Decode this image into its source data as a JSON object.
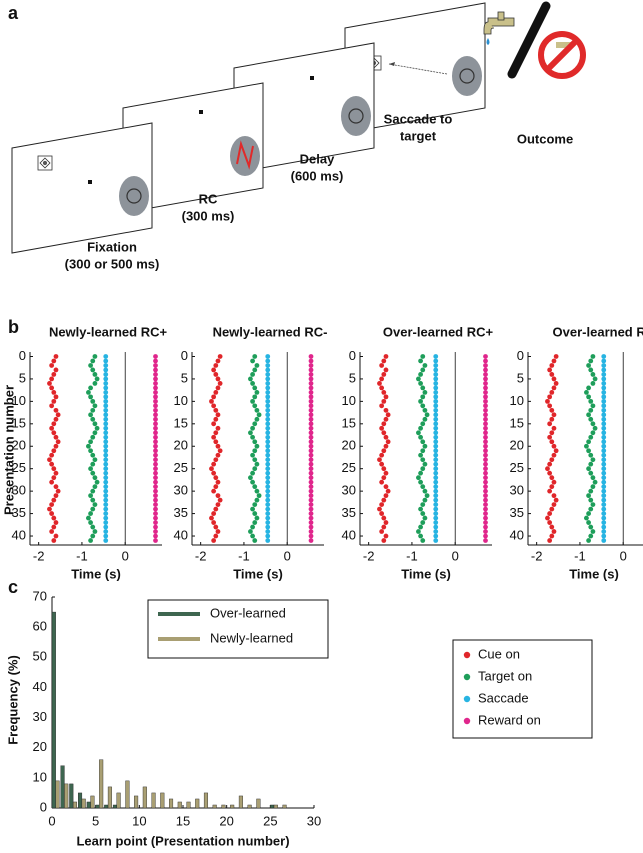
{
  "panel_a": {
    "label": "a",
    "steps": [
      {
        "lines": [
          "Fixation",
          "(300 or 500 ms)"
        ]
      },
      {
        "lines": [
          "RC",
          "(300 ms)"
        ]
      },
      {
        "lines": [
          "Delay",
          "(600 ms)"
        ]
      },
      {
        "lines": [
          "Saccade to",
          "target"
        ]
      },
      {
        "lines": [
          "Outcome"
        ]
      }
    ]
  },
  "panel_b": {
    "label": "b",
    "type": "raster",
    "ylabel": "Presentation number",
    "xlabel": "Time (s)",
    "xlim": [
      -2.2,
      0.85
    ],
    "xticks": [
      -2,
      -1,
      0
    ],
    "ylim": [
      -1,
      42
    ],
    "yticks": [
      0,
      5,
      10,
      15,
      20,
      25,
      30,
      35,
      40
    ],
    "legend": [
      {
        "name": "Cue on",
        "color": "#e0262a"
      },
      {
        "name": "Target on",
        "color": "#1e9e5a"
      },
      {
        "name": "Saccade",
        "color": "#27b4e2"
      },
      {
        "name": "Reward on",
        "color": "#e0268c"
      }
    ],
    "plots": [
      {
        "title": "Newly-learned RC+",
        "series": [
          {
            "values": [
              -1.6,
              -1.65,
              -1.7,
              -1.6,
              -1.65,
              -1.7,
              -1.75,
              -1.7,
              -1.65,
              -1.6,
              -1.65,
              -1.7,
              -1.6,
              -1.55,
              -1.6,
              -1.65,
              -1.7,
              -1.65,
              -1.6,
              -1.55,
              -1.6,
              -1.65,
              -1.7,
              -1.75,
              -1.7,
              -1.65,
              -1.6,
              -1.65,
              -1.7,
              -1.6,
              -1.55,
              -1.6,
              -1.65,
              -1.7,
              -1.75,
              -1.7,
              -1.65,
              -1.6,
              -1.65,
              -1.7,
              -1.6,
              -1.65
            ]
          },
          {
            "values": [
              -0.7,
              -0.75,
              -0.8,
              -0.75,
              -0.7,
              -0.65,
              -0.7,
              -0.8,
              -0.85,
              -0.8,
              -0.75,
              -0.7,
              -0.75,
              -0.8,
              -0.75,
              -0.7,
              -0.65,
              -0.7,
              -0.75,
              -0.8,
              -0.85,
              -0.8,
              -0.75,
              -0.7,
              -0.75,
              -0.8,
              -0.75,
              -0.7,
              -0.65,
              -0.7,
              -0.75,
              -0.8,
              -0.75,
              -0.7,
              -0.75,
              -0.8,
              -0.85,
              -0.8,
              -0.75,
              -0.7,
              -0.75,
              -0.8
            ]
          },
          {
            "values": [
              -0.45,
              -0.45,
              -0.45,
              -0.45,
              -0.45,
              -0.45,
              -0.45,
              -0.45,
              -0.45,
              -0.45,
              -0.45,
              -0.45,
              -0.45,
              -0.45,
              -0.45,
              -0.45,
              -0.45,
              -0.45,
              -0.45,
              -0.45,
              -0.45,
              -0.45,
              -0.45,
              -0.45,
              -0.45,
              -0.45,
              -0.45,
              -0.45,
              -0.45,
              -0.45,
              -0.45,
              -0.45,
              -0.45,
              -0.45,
              -0.45,
              -0.45,
              -0.45,
              -0.45,
              -0.45,
              -0.45,
              -0.45,
              -0.45
            ]
          },
          {
            "values": [
              0.7,
              0.7,
              0.7,
              0.7,
              0.7,
              0.7,
              0.7,
              0.7,
              0.7,
              0.7,
              0.7,
              0.7,
              0.7,
              0.7,
              0.7,
              0.7,
              0.7,
              0.7,
              0.7,
              0.7,
              0.7,
              0.7,
              0.7,
              0.7,
              0.7,
              0.7,
              0.7,
              0.7,
              0.7,
              0.7,
              0.7,
              0.7,
              0.7,
              0.7,
              0.7,
              0.7,
              0.7,
              0.7,
              0.7,
              0.7,
              0.7,
              0.7
            ]
          }
        ]
      },
      {
        "title": "Newly-learned RC-",
        "series": [
          {
            "values": [
              -1.55,
              -1.6,
              -1.65,
              -1.7,
              -1.65,
              -1.6,
              -1.55,
              -1.6,
              -1.65,
              -1.7,
              -1.75,
              -1.7,
              -1.65,
              -1.6,
              -1.65,
              -1.7,
              -1.6,
              -1.65,
              -1.7,
              -1.65,
              -1.6,
              -1.55,
              -1.6,
              -1.65,
              -1.7,
              -1.75,
              -1.7,
              -1.65,
              -1.6,
              -1.65,
              -1.7,
              -1.6,
              -1.55,
              -1.6,
              -1.65,
              -1.7,
              -1.75,
              -1.7,
              -1.65,
              -1.6,
              -1.65,
              -1.7
            ]
          },
          {
            "values": [
              -0.75,
              -0.8,
              -0.7,
              -0.75,
              -0.8,
              -0.85,
              -0.8,
              -0.75,
              -0.7,
              -0.75,
              -0.8,
              -0.75,
              -0.7,
              -0.65,
              -0.7,
              -0.75,
              -0.8,
              -0.85,
              -0.8,
              -0.75,
              -0.7,
              -0.75,
              -0.8,
              -0.75,
              -0.7,
              -0.75,
              -0.8,
              -0.85,
              -0.8,
              -0.75,
              -0.7,
              -0.65,
              -0.7,
              -0.75,
              -0.8,
              -0.75,
              -0.7,
              -0.75,
              -0.8,
              -0.85,
              -0.8,
              -0.75
            ]
          },
          {
            "values": [
              -0.45,
              -0.45,
              -0.45,
              -0.45,
              -0.45,
              -0.45,
              -0.45,
              -0.45,
              -0.45,
              -0.45,
              -0.45,
              -0.45,
              -0.45,
              -0.45,
              -0.45,
              -0.45,
              -0.45,
              -0.45,
              -0.45,
              -0.45,
              -0.45,
              -0.45,
              -0.45,
              -0.45,
              -0.45,
              -0.45,
              -0.45,
              -0.45,
              -0.45,
              -0.45,
              -0.45,
              -0.45,
              -0.45,
              -0.45,
              -0.45,
              -0.45,
              -0.45,
              -0.45,
              -0.45,
              -0.45,
              -0.45,
              -0.45
            ]
          },
          {
            "values": [
              0.55,
              0.55,
              0.55,
              0.55,
              0.55,
              0.55,
              0.55,
              0.55,
              0.55,
              0.55,
              0.55,
              0.55,
              0.55,
              0.55,
              0.55,
              0.55,
              0.55,
              0.55,
              0.55,
              0.55,
              0.55,
              0.55,
              0.55,
              0.55,
              0.55,
              0.55,
              0.55,
              0.55,
              0.55,
              0.55,
              0.55,
              0.55,
              0.55,
              0.55,
              0.55,
              0.55,
              0.55,
              0.55,
              0.55,
              0.55,
              0.55,
              0.55
            ]
          }
        ]
      },
      {
        "title": "Over-learned RC+",
        "series": [
          {
            "values": [
              -1.6,
              -1.65,
              -1.7,
              -1.6,
              -1.65,
              -1.7,
              -1.75,
              -1.7,
              -1.65,
              -1.6,
              -1.65,
              -1.7,
              -1.6,
              -1.55,
              -1.6,
              -1.65,
              -1.7,
              -1.65,
              -1.6,
              -1.55,
              -1.6,
              -1.65,
              -1.7,
              -1.75,
              -1.7,
              -1.65,
              -1.6,
              -1.65,
              -1.7,
              -1.6,
              -1.55,
              -1.6,
              -1.65,
              -1.7,
              -1.75,
              -1.7,
              -1.65,
              -1.6,
              -1.65,
              -1.7,
              -1.6,
              -1.65
            ]
          },
          {
            "values": [
              -0.75,
              -0.8,
              -0.7,
              -0.75,
              -0.8,
              -0.85,
              -0.8,
              -0.75,
              -0.7,
              -0.75,
              -0.8,
              -0.75,
              -0.7,
              -0.65,
              -0.7,
              -0.75,
              -0.8,
              -0.85,
              -0.8,
              -0.75,
              -0.7,
              -0.75,
              -0.8,
              -0.75,
              -0.7,
              -0.75,
              -0.8,
              -0.85,
              -0.8,
              -0.75,
              -0.7,
              -0.65,
              -0.7,
              -0.75,
              -0.8,
              -0.75,
              -0.7,
              -0.75,
              -0.8,
              -0.85,
              -0.8,
              -0.75
            ]
          },
          {
            "values": [
              -0.45,
              -0.45,
              -0.45,
              -0.45,
              -0.45,
              -0.45,
              -0.45,
              -0.45,
              -0.45,
              -0.45,
              -0.45,
              -0.45,
              -0.45,
              -0.45,
              -0.45,
              -0.45,
              -0.45,
              -0.45,
              -0.45,
              -0.45,
              -0.45,
              -0.45,
              -0.45,
              -0.45,
              -0.45,
              -0.45,
              -0.45,
              -0.45,
              -0.45,
              -0.45,
              -0.45,
              -0.45,
              -0.45,
              -0.45,
              -0.45,
              -0.45,
              -0.45,
              -0.45,
              -0.45,
              -0.45,
              -0.45,
              -0.45
            ]
          },
          {
            "values": [
              0.7,
              0.7,
              0.7,
              0.7,
              0.7,
              0.7,
              0.7,
              0.7,
              0.7,
              0.7,
              0.7,
              0.7,
              0.7,
              0.7,
              0.7,
              0.7,
              0.7,
              0.7,
              0.7,
              0.7,
              0.7,
              0.7,
              0.7,
              0.7,
              0.7,
              0.7,
              0.7,
              0.7,
              0.7,
              0.7,
              0.7,
              0.7,
              0.7,
              0.7,
              0.7,
              0.7,
              0.7,
              0.7,
              0.7,
              0.7,
              0.7,
              0.7
            ]
          }
        ]
      },
      {
        "title": "Over-learned RC-",
        "series": [
          {
            "values": [
              -1.55,
              -1.6,
              -1.65,
              -1.7,
              -1.65,
              -1.6,
              -1.55,
              -1.6,
              -1.65,
              -1.7,
              -1.75,
              -1.7,
              -1.65,
              -1.6,
              -1.65,
              -1.7,
              -1.6,
              -1.65,
              -1.7,
              -1.65,
              -1.6,
              -1.55,
              -1.6,
              -1.65,
              -1.7,
              -1.75,
              -1.7,
              -1.65,
              -1.6,
              -1.65,
              -1.7,
              -1.6,
              -1.55,
              -1.6,
              -1.65,
              -1.7,
              -1.75,
              -1.7,
              -1.65,
              -1.6,
              -1.65,
              -1.7
            ]
          },
          {
            "values": [
              -0.7,
              -0.75,
              -0.8,
              -0.75,
              -0.7,
              -0.65,
              -0.7,
              -0.8,
              -0.85,
              -0.8,
              -0.75,
              -0.7,
              -0.75,
              -0.8,
              -0.75,
              -0.7,
              -0.65,
              -0.7,
              -0.75,
              -0.8,
              -0.85,
              -0.8,
              -0.75,
              -0.7,
              -0.75,
              -0.8,
              -0.75,
              -0.7,
              -0.65,
              -0.7,
              -0.75,
              -0.8,
              -0.75,
              -0.7,
              -0.75,
              -0.8,
              -0.85,
              -0.8,
              -0.75,
              -0.7,
              -0.75,
              -0.8
            ]
          },
          {
            "values": [
              -0.45,
              -0.45,
              -0.45,
              -0.45,
              -0.45,
              -0.45,
              -0.45,
              -0.45,
              -0.45,
              -0.45,
              -0.45,
              -0.45,
              -0.45,
              -0.45,
              -0.45,
              -0.45,
              -0.45,
              -0.45,
              -0.45,
              -0.45,
              -0.45,
              -0.45,
              -0.45,
              -0.45,
              -0.45,
              -0.45,
              -0.45,
              -0.45,
              -0.45,
              -0.45,
              -0.45,
              -0.45,
              -0.45,
              -0.45,
              -0.45,
              -0.45,
              -0.45,
              -0.45,
              -0.45,
              -0.45,
              -0.45,
              -0.45
            ]
          },
          {
            "values": [
              0.55,
              0.55,
              0.55,
              0.55,
              0.55,
              0.55,
              0.55,
              0.55,
              0.55,
              0.55,
              0.55,
              0.55,
              0.55,
              0.55,
              0.55,
              0.55,
              0.55,
              0.55,
              0.55,
              0.55,
              0.55,
              0.55,
              0.55,
              0.55,
              0.55,
              0.55,
              0.55,
              0.55,
              0.55,
              0.55,
              0.55,
              0.55,
              0.55,
              0.55,
              0.55,
              0.55,
              0.55,
              0.55,
              0.55,
              0.55,
              0.55,
              0.55
            ]
          }
        ]
      }
    ]
  },
  "panel_c": {
    "label": "c",
    "type": "bar",
    "xlabel": "Learn point (Presentation number)",
    "ylabel": "Frequency (%)",
    "xlim": [
      0,
      30
    ],
    "xticks": [
      0,
      5,
      10,
      15,
      20,
      25,
      30
    ],
    "ylim": [
      0,
      70
    ],
    "yticks": [
      0,
      10,
      20,
      30,
      40,
      50,
      60,
      70
    ],
    "x": [
      0,
      1,
      2,
      3,
      4,
      5,
      6,
      7,
      8,
      9,
      10,
      11,
      12,
      13,
      14,
      15,
      16,
      17,
      18,
      19,
      20,
      21,
      22,
      23,
      24,
      25,
      26
    ],
    "series": [
      {
        "name": "Over-learned",
        "color": "#3e6650",
        "values": [
          65,
          14,
          8,
          5,
          2,
          1,
          1,
          1,
          0,
          0,
          0,
          0,
          0,
          0,
          0,
          0,
          0,
          0,
          0,
          0,
          0,
          0,
          0,
          0,
          0,
          1,
          0
        ]
      },
      {
        "name": "Newly-learned",
        "color": "#a99f73",
        "values": [
          9,
          8,
          2,
          3,
          4,
          16,
          7,
          5,
          9,
          4,
          7,
          5,
          5,
          3,
          2,
          2,
          3,
          5,
          1,
          1,
          1,
          4,
          1,
          3,
          0,
          1,
          1
        ]
      }
    ]
  }
}
